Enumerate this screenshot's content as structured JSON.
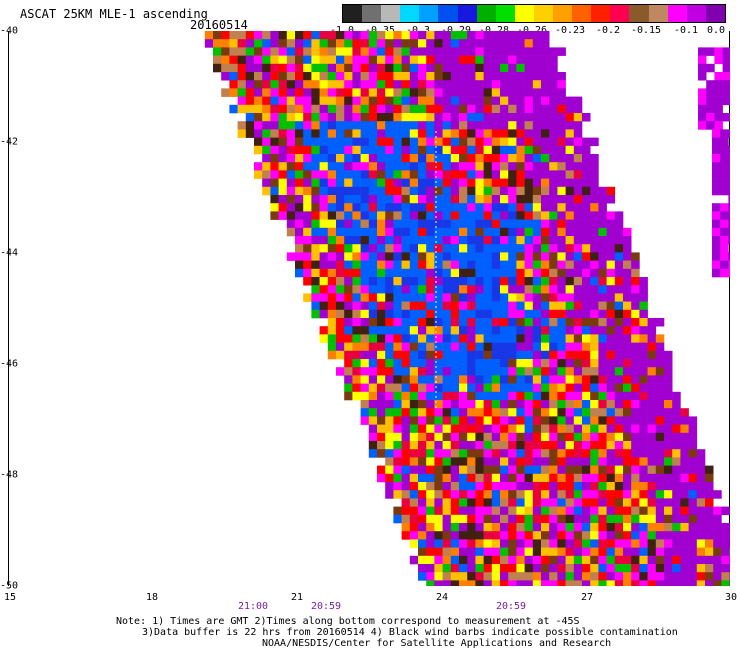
{
  "header": {
    "title": "ASCAT 25KM MLE-1 ascending",
    "date": "20160514"
  },
  "colorbar": {
    "colors": [
      "#202020",
      "#707070",
      "#b8b8b8",
      "#00d8ff",
      "#00a0ff",
      "#0050f0",
      "#1818e0",
      "#00b000",
      "#00e000",
      "#ffff00",
      "#ffd000",
      "#ffa000",
      "#ff6000",
      "#ff2000",
      "#ff0050",
      "#8b5a2b",
      "#c08860",
      "#ff00ff",
      "#c000e0",
      "#8000b0"
    ],
    "labels": [
      "-1.0",
      "-0.35",
      "-0.3",
      "-0.29",
      "-0.28",
      "-0.26",
      "-0.23",
      "-0.2",
      "-0.15",
      "-0.1",
      "0.0"
    ]
  },
  "axes": {
    "y_ticks": [
      "-40",
      "-42",
      "-44",
      "-46",
      "-48",
      "-50"
    ],
    "x_ticks": [
      "15",
      "18",
      "21",
      "24",
      "27",
      "30"
    ]
  },
  "time_labels": [
    "21:00",
    "20:59",
    "20:59"
  ],
  "notes": {
    "line1": "Note: 1) Times are GMT 2)Times along bottom correspond to measurement at -45S",
    "line2": "3)Data buffer is 22 hrs from 20160514 4) Black wind barbs indicate possible contamination",
    "line3": "NOAA/NESDIS/Center for Satellite Applications and Research"
  },
  "palette": {
    "purple": "#a000d0",
    "magenta": "#ff00ff",
    "red": "#ff0000",
    "crimson": "#e80040",
    "orange": "#ff8000",
    "yellow": "#ffff00",
    "gold": "#ffc000",
    "green": "#00c000",
    "blue": "#0060ff",
    "darkblue": "#1838e8",
    "brown": "#7a3a10",
    "tan": "#c08050",
    "dark": "#402010"
  }
}
